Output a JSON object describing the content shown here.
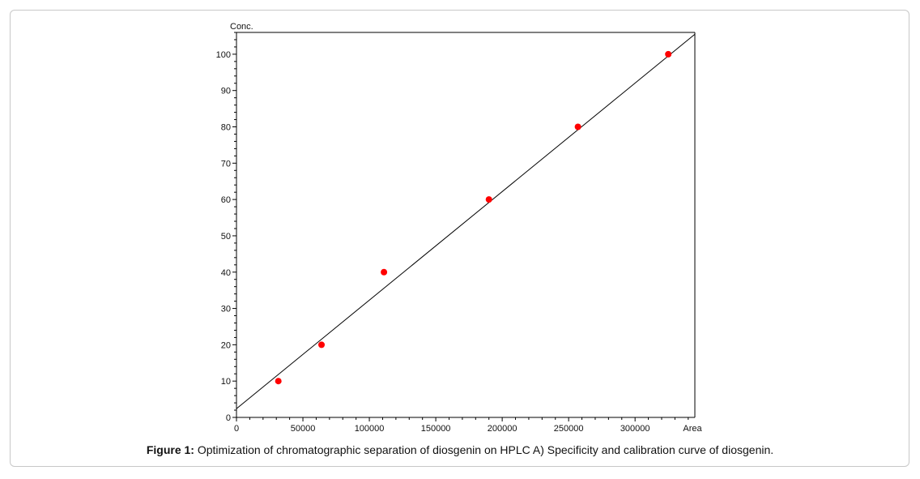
{
  "chart_data": {
    "type": "scatter",
    "ylabel": "Conc.",
    "xlabel": "Area",
    "xlim": [
      0,
      345000
    ],
    "ylim": [
      0,
      106
    ],
    "x_ticks": [
      0,
      50000,
      100000,
      150000,
      200000,
      250000,
      300000
    ],
    "x_tick_labels": [
      "0",
      "50000",
      "100000",
      "150000",
      "200000",
      "250000",
      "300000"
    ],
    "y_ticks": [
      0,
      10,
      20,
      30,
      40,
      50,
      60,
      70,
      80,
      90,
      100
    ],
    "y_tick_labels": [
      "0",
      "10",
      "20",
      "30",
      "40",
      "50",
      "60",
      "70",
      "80",
      "90",
      "100"
    ],
    "points": [
      {
        "x": 31500,
        "y": 10
      },
      {
        "x": 64000,
        "y": 20
      },
      {
        "x": 111000,
        "y": 40
      },
      {
        "x": 190000,
        "y": 60
      },
      {
        "x": 257000,
        "y": 80
      },
      {
        "x": 325000,
        "y": 100
      }
    ],
    "fit_line": {
      "x": [
        0,
        345000
      ],
      "y": [
        2.4,
        105.5
      ]
    },
    "point_color": "#ff0000",
    "line_color": "#000000",
    "grid": false
  },
  "caption": {
    "label": "Figure 1:",
    "text": " Optimization of chromatographic separation of diosgenin on HPLC A) Specificity and calibration curve of diosgenin."
  }
}
